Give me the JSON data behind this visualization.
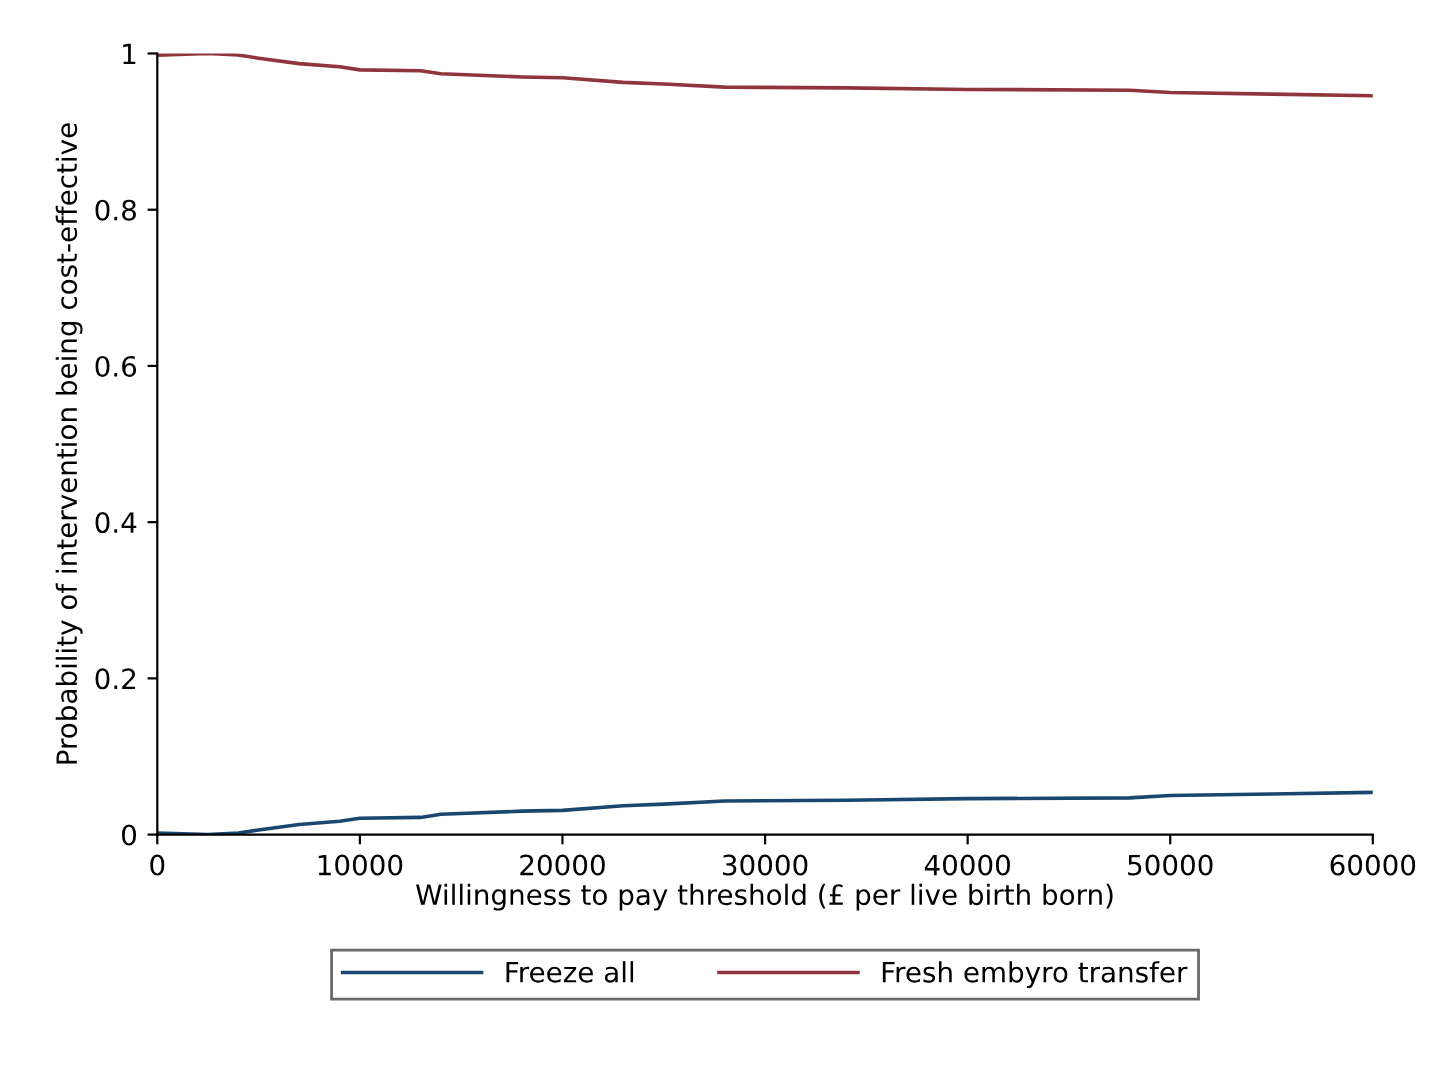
{
  "chart_data": {
    "type": "line",
    "xlabel": "Willingness to pay threshold (£ per live birth born)",
    "ylabel": "Probability of intervention being cost-effective",
    "xlim": [
      0,
      60000
    ],
    "xticks": [
      0,
      10000,
      20000,
      30000,
      40000,
      50000,
      60000
    ],
    "ylim": [
      0,
      1
    ],
    "yticks": [
      0,
      0.2,
      0.4,
      0.6,
      0.8,
      1
    ],
    "grid": false,
    "legend": "bottom",
    "marker": "none",
    "line_style": "solid",
    "x": [
      0,
      2500,
      4000,
      5000,
      7000,
      9000,
      10000,
      13000,
      14000,
      18000,
      20000,
      23000,
      25000,
      28000,
      34000,
      40000,
      48000,
      50000,
      55000,
      60000
    ],
    "series": [
      {
        "name": "Freeze all",
        "color": "#1a476f",
        "values": [
          0.002,
          0,
          0.002,
          0.006,
          0.013,
          0.017,
          0.021,
          0.022,
          0.026,
          0.03,
          0.031,
          0.037,
          0.039,
          0.043,
          0.044,
          0.046,
          0.047,
          0.05,
          0.052,
          0.054
        ]
      },
      {
        "name": "Fresh embyro transfer",
        "color": "#90353b",
        "values": [
          0.998,
          1,
          0.998,
          0.994,
          0.987,
          0.983,
          0.979,
          0.978,
          0.974,
          0.97,
          0.969,
          0.963,
          0.961,
          0.957,
          0.956,
          0.954,
          0.953,
          0.95,
          0.948,
          0.946
        ]
      }
    ]
  }
}
